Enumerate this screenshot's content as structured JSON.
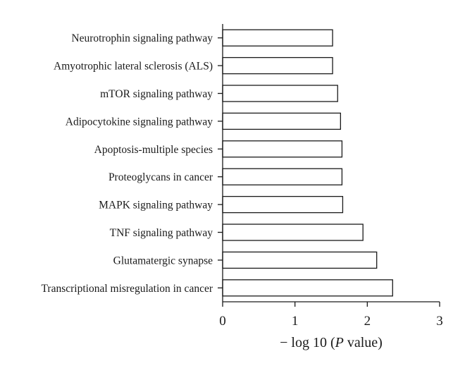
{
  "chart_data": {
    "type": "bar",
    "orientation": "horizontal",
    "categories": [
      "Neurotrophin signaling pathway",
      "Amyotrophic lateral sclerosis (ALS)",
      "mTOR signaling pathway",
      "Adipocytokine signaling pathway",
      "Apoptosis-multiple species",
      "Proteoglycans in cancer",
      "MAPK signaling pathway",
      "TNF signaling pathway",
      "Glutamatergic synapse",
      "Transcriptional misregulation in cancer"
    ],
    "values": [
      1.52,
      1.52,
      1.59,
      1.63,
      1.65,
      1.65,
      1.66,
      1.94,
      2.13,
      2.35
    ],
    "xlabel_prefix": "− log 10 (",
    "xlabel_italic": "P",
    "xlabel_suffix": " value)",
    "ylabel": "",
    "xlim": [
      0,
      3
    ],
    "xticks": [
      "0",
      "1",
      "2",
      "3"
    ],
    "grid": false,
    "colors": {
      "bar_fill": "#ffffff",
      "bar_stroke": "#1a1a1a",
      "text": "#1a1a1a"
    }
  }
}
